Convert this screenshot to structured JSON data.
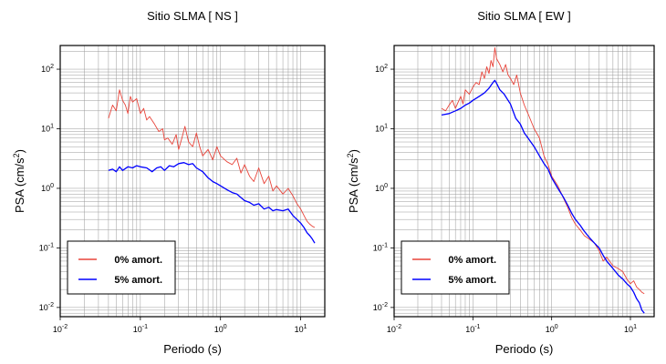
{
  "chart_data": [
    {
      "type": "line",
      "title": "Sitio SLMA [ NS ]",
      "xlabel": "Periodo (s)",
      "ylabel": "PSA (cm/s2)",
      "xscale": "log",
      "yscale": "log",
      "xlim": [
        0.01,
        20
      ],
      "ylim": [
        0.007,
        250
      ],
      "grid": true,
      "legend": "bottom-left",
      "x_ticks": [
        0.01,
        0.1,
        1,
        10
      ],
      "y_ticks": [
        0.01,
        0.1,
        1,
        10,
        100
      ],
      "series": [
        {
          "name": "0% amort.",
          "color": "#e8443a",
          "points": [
            [
              0.04,
              15
            ],
            [
              0.045,
              25
            ],
            [
              0.05,
              20
            ],
            [
              0.055,
              45
            ],
            [
              0.06,
              30
            ],
            [
              0.065,
              25
            ],
            [
              0.07,
              18
            ],
            [
              0.075,
              35
            ],
            [
              0.08,
              28
            ],
            [
              0.09,
              32
            ],
            [
              0.1,
              18
            ],
            [
              0.11,
              22
            ],
            [
              0.12,
              14
            ],
            [
              0.13,
              16
            ],
            [
              0.15,
              12
            ],
            [
              0.17,
              9
            ],
            [
              0.19,
              10
            ],
            [
              0.2,
              6.5
            ],
            [
              0.22,
              7
            ],
            [
              0.25,
              5.5
            ],
            [
              0.28,
              8
            ],
            [
              0.3,
              4.5
            ],
            [
              0.33,
              7
            ],
            [
              0.36,
              11
            ],
            [
              0.4,
              6
            ],
            [
              0.45,
              5
            ],
            [
              0.5,
              8.5
            ],
            [
              0.55,
              5
            ],
            [
              0.6,
              3.5
            ],
            [
              0.7,
              4.5
            ],
            [
              0.8,
              3
            ],
            [
              0.9,
              5
            ],
            [
              1,
              3.5
            ],
            [
              1.2,
              2.8
            ],
            [
              1.4,
              2.5
            ],
            [
              1.6,
              3.2
            ],
            [
              1.8,
              1.8
            ],
            [
              2,
              2.5
            ],
            [
              2.3,
              1.6
            ],
            [
              2.6,
              1.3
            ],
            [
              3,
              2.2
            ],
            [
              3.5,
              1.2
            ],
            [
              4,
              1.6
            ],
            [
              4.5,
              0.9
            ],
            [
              5,
              1.1
            ],
            [
              6,
              0.8
            ],
            [
              7,
              1.0
            ],
            [
              8,
              0.75
            ],
            [
              9,
              0.55
            ],
            [
              10,
              0.45
            ],
            [
              11,
              0.35
            ],
            [
              12,
              0.28
            ],
            [
              13,
              0.25
            ],
            [
              14,
              0.23
            ],
            [
              15,
              0.22
            ]
          ]
        },
        {
          "name": "5% amort.",
          "color": "#0000ff",
          "points": [
            [
              0.04,
              2.0
            ],
            [
              0.045,
              2.1
            ],
            [
              0.05,
              1.9
            ],
            [
              0.055,
              2.3
            ],
            [
              0.06,
              2.0
            ],
            [
              0.07,
              2.3
            ],
            [
              0.08,
              2.2
            ],
            [
              0.09,
              2.4
            ],
            [
              0.1,
              2.3
            ],
            [
              0.12,
              2.2
            ],
            [
              0.14,
              1.9
            ],
            [
              0.16,
              2.2
            ],
            [
              0.18,
              2.3
            ],
            [
              0.2,
              2.0
            ],
            [
              0.23,
              2.4
            ],
            [
              0.26,
              2.3
            ],
            [
              0.3,
              2.6
            ],
            [
              0.35,
              2.7
            ],
            [
              0.4,
              2.5
            ],
            [
              0.45,
              2.6
            ],
            [
              0.5,
              2.2
            ],
            [
              0.6,
              1.9
            ],
            [
              0.7,
              1.5
            ],
            [
              0.8,
              1.3
            ],
            [
              0.9,
              1.2
            ],
            [
              1,
              1.1
            ],
            [
              1.2,
              0.95
            ],
            [
              1.4,
              0.85
            ],
            [
              1.6,
              0.8
            ],
            [
              1.8,
              0.7
            ],
            [
              2,
              0.62
            ],
            [
              2.3,
              0.58
            ],
            [
              2.6,
              0.52
            ],
            [
              3,
              0.55
            ],
            [
              3.5,
              0.45
            ],
            [
              4,
              0.48
            ],
            [
              4.5,
              0.42
            ],
            [
              5,
              0.44
            ],
            [
              6,
              0.42
            ],
            [
              7,
              0.45
            ],
            [
              8,
              0.35
            ],
            [
              9,
              0.3
            ],
            [
              10,
              0.26
            ],
            [
              11,
              0.22
            ],
            [
              12,
              0.18
            ],
            [
              13,
              0.16
            ],
            [
              14,
              0.14
            ],
            [
              15,
              0.12
            ]
          ]
        }
      ]
    },
    {
      "type": "line",
      "title": "Sitio SLMA [ EW ]",
      "xlabel": "Periodo (s)",
      "ylabel": "PSA (cm/s2)",
      "xscale": "log",
      "yscale": "log",
      "xlim": [
        0.01,
        20
      ],
      "ylim": [
        0.007,
        250
      ],
      "grid": true,
      "legend": "bottom-left",
      "x_ticks": [
        0.01,
        0.1,
        1,
        10
      ],
      "y_ticks": [
        0.01,
        0.1,
        1,
        10,
        100
      ],
      "series": [
        {
          "name": "0% amort.",
          "color": "#e8443a",
          "points": [
            [
              0.04,
              22
            ],
            [
              0.045,
              20
            ],
            [
              0.05,
              25
            ],
            [
              0.055,
              30
            ],
            [
              0.06,
              22
            ],
            [
              0.065,
              28
            ],
            [
              0.07,
              35
            ],
            [
              0.075,
              26
            ],
            [
              0.08,
              45
            ],
            [
              0.09,
              38
            ],
            [
              0.1,
              50
            ],
            [
              0.11,
              60
            ],
            [
              0.12,
              55
            ],
            [
              0.13,
              90
            ],
            [
              0.14,
              70
            ],
            [
              0.15,
              110
            ],
            [
              0.16,
              85
            ],
            [
              0.17,
              140
            ],
            [
              0.18,
              110
            ],
            [
              0.19,
              230
            ],
            [
              0.2,
              150
            ],
            [
              0.22,
              120
            ],
            [
              0.24,
              90
            ],
            [
              0.26,
              120
            ],
            [
              0.28,
              80
            ],
            [
              0.3,
              70
            ],
            [
              0.33,
              55
            ],
            [
              0.36,
              80
            ],
            [
              0.4,
              40
            ],
            [
              0.45,
              25
            ],
            [
              0.5,
              18
            ],
            [
              0.6,
              10
            ],
            [
              0.7,
              7
            ],
            [
              0.8,
              3.5
            ],
            [
              0.9,
              2.5
            ],
            [
              1,
              1.6
            ],
            [
              1.2,
              1.1
            ],
            [
              1.4,
              0.7
            ],
            [
              1.6,
              0.48
            ],
            [
              1.8,
              0.32
            ],
            [
              2,
              0.25
            ],
            [
              2.3,
              0.2
            ],
            [
              2.6,
              0.16
            ],
            [
              3,
              0.14
            ],
            [
              3.5,
              0.12
            ],
            [
              4,
              0.09
            ],
            [
              4.5,
              0.06
            ],
            [
              5,
              0.07
            ],
            [
              6,
              0.05
            ],
            [
              7,
              0.045
            ],
            [
              8,
              0.04
            ],
            [
              9,
              0.03
            ],
            [
              10,
              0.025
            ],
            [
              11,
              0.028
            ],
            [
              12,
              0.022
            ],
            [
              13,
              0.02
            ],
            [
              14,
              0.018
            ],
            [
              15,
              0.017
            ]
          ]
        },
        {
          "name": "5% amort.",
          "color": "#0000ff",
          "points": [
            [
              0.04,
              17
            ],
            [
              0.05,
              18
            ],
            [
              0.06,
              20
            ],
            [
              0.07,
              22
            ],
            [
              0.08,
              25
            ],
            [
              0.09,
              27
            ],
            [
              0.1,
              30
            ],
            [
              0.12,
              35
            ],
            [
              0.14,
              40
            ],
            [
              0.16,
              48
            ],
            [
              0.18,
              60
            ],
            [
              0.19,
              65
            ],
            [
              0.2,
              58
            ],
            [
              0.22,
              45
            ],
            [
              0.25,
              38
            ],
            [
              0.28,
              30
            ],
            [
              0.3,
              26
            ],
            [
              0.35,
              15
            ],
            [
              0.4,
              12
            ],
            [
              0.45,
              8.5
            ],
            [
              0.5,
              7
            ],
            [
              0.6,
              5
            ],
            [
              0.7,
              3.5
            ],
            [
              0.8,
              2.6
            ],
            [
              0.9,
              2.1
            ],
            [
              1,
              1.5
            ],
            [
              1.2,
              1.0
            ],
            [
              1.4,
              0.72
            ],
            [
              1.6,
              0.52
            ],
            [
              1.8,
              0.38
            ],
            [
              2,
              0.3
            ],
            [
              2.3,
              0.24
            ],
            [
              2.6,
              0.19
            ],
            [
              3,
              0.15
            ],
            [
              3.5,
              0.12
            ],
            [
              4,
              0.1
            ],
            [
              4.5,
              0.075
            ],
            [
              5,
              0.06
            ],
            [
              6,
              0.045
            ],
            [
              7,
              0.035
            ],
            [
              8,
              0.03
            ],
            [
              9,
              0.025
            ],
            [
              10,
              0.022
            ],
            [
              11,
              0.018
            ],
            [
              12,
              0.014
            ],
            [
              13,
              0.012
            ],
            [
              14,
              0.009
            ],
            [
              15,
              0.008
            ]
          ]
        }
      ]
    }
  ]
}
